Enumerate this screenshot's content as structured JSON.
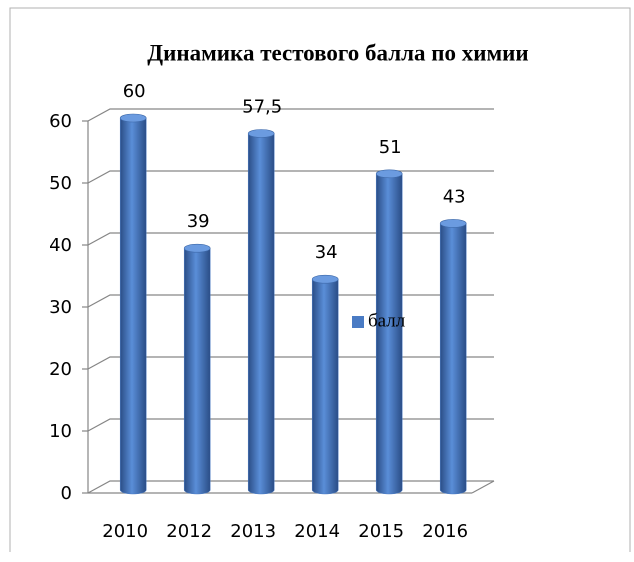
{
  "chart_data": {
    "type": "bar",
    "title": "Динамика тестового балла по химии",
    "categories": [
      "2010",
      "2012",
      "2013",
      "2014",
      "2015",
      "2016"
    ],
    "series": [
      {
        "name": "балл",
        "color": "#4a7bc4",
        "values": [
          60,
          39,
          57.5,
          34,
          51,
          43
        ],
        "value_labels": [
          "60",
          "39",
          "57,5",
          "34",
          "51",
          "43"
        ]
      }
    ],
    "ylim": [
      0,
      60
    ],
    "yticks": [
      0,
      10,
      20,
      30,
      40,
      50,
      60
    ],
    "grid": true,
    "legend": "right"
  }
}
